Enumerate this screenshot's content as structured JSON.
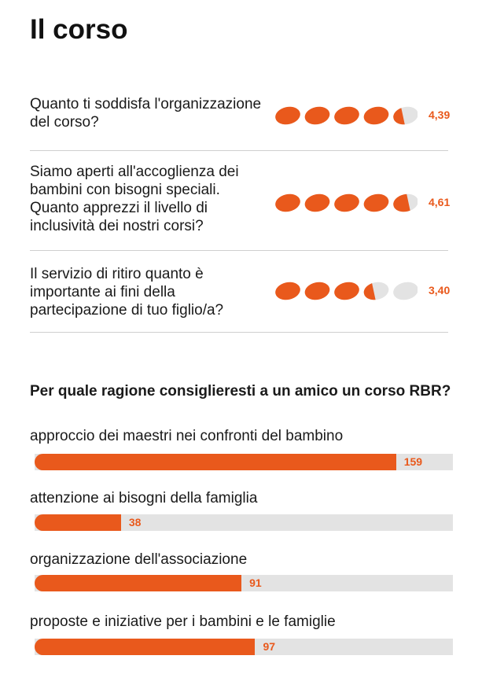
{
  "title": "Il corso",
  "colors": {
    "accent": "#e9591c",
    "inactive": "#e3e3e3",
    "text": "#1a1a1a"
  },
  "ratings": [
    {
      "question": "Quanto ti soddisfa l'organizzazione del corso?",
      "value": 4.39,
      "value_label": "4,39",
      "max": 5
    },
    {
      "question": "Siamo aperti all'accoglienza dei bambini con bisogni speciali. Quanto apprezzi il livello di inclusività dei nostri corsi?",
      "value": 4.61,
      "value_label": "4,61",
      "max": 5
    },
    {
      "question": "Il servizio di ritiro quanto è importante ai fini della partecipazione di tuo figlio/a?",
      "value": 3.4,
      "value_label": "3,40",
      "max": 5
    }
  ],
  "question2": "Per quale ragione consiglieresti a un amico un corso RBR?",
  "chart_data": {
    "type": "bar",
    "orientation": "horizontal",
    "categories": [
      "approccio dei maestri nei confronti del bambino",
      "attenzione ai bisogni della famiglia",
      "organizzazione dell'associazione",
      "proposte e iniziative per i bambini e le famiglie"
    ],
    "values": [
      159,
      38,
      91,
      97
    ],
    "xlim": [
      0,
      184
    ],
    "grid": false
  }
}
